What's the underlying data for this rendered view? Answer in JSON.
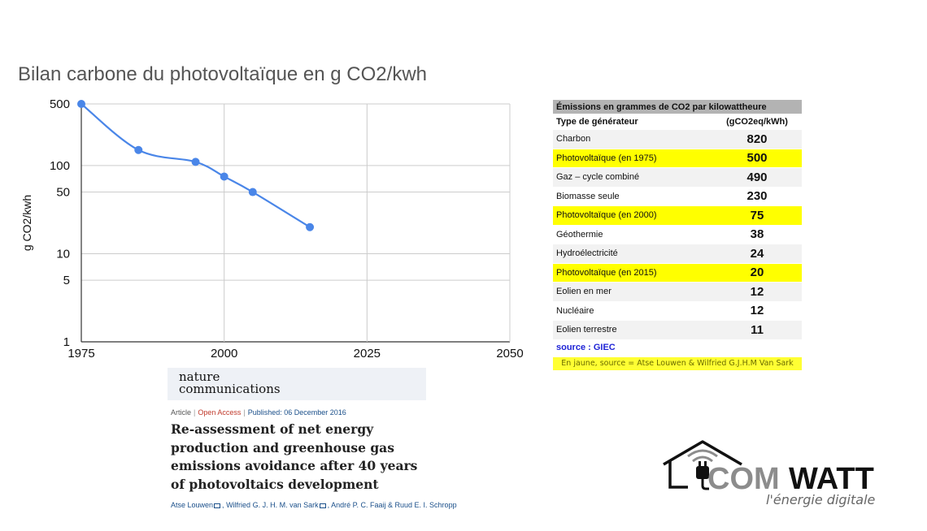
{
  "chart_data": {
    "type": "line",
    "title": "Bilan carbone du photovoltaïque en g CO2/kwh",
    "xlabel": "",
    "ylabel": "g CO2/kwh",
    "y_scale": "log",
    "xlim": [
      1975,
      2050
    ],
    "ylim": [
      1,
      500
    ],
    "x_ticks": [
      "1975",
      "2000",
      "2025",
      "2050"
    ],
    "y_ticks": [
      "1",
      "5",
      "10",
      "50",
      "100",
      "500"
    ],
    "grid": true,
    "legend": "none",
    "series": [
      {
        "color": "#4a86e8",
        "x": [
          1975,
          1985,
          1995,
          2000,
          2005,
          2015
        ],
        "y": [
          500,
          150,
          110,
          75,
          50,
          20
        ]
      }
    ]
  },
  "paper": {
    "journal_line1": "nature",
    "journal_line2": "communications",
    "article": "Article",
    "open_access": "Open Access",
    "published": "Published: 06 December 2016",
    "title": "Re-assessment of net energy production and greenhouse gas emissions avoidance after 40 years of photovoltaics development",
    "author1": "Atse Louwen",
    "author2": "Wilfried G. J. H. M. van Sark",
    "author3": "André P. C. Faaij",
    "amp": "&",
    "author4": "Ruud E. I. Schropp"
  },
  "emissions_table": {
    "title": "Émissions en grammes de CO2 par kilowattheure",
    "col1_header": "Type de générateur",
    "col2_header": "(gCO2eq/kWh)",
    "rows": [
      {
        "name": "Charbon",
        "value": "820",
        "highlight": false
      },
      {
        "name": "Photovoltaïque (en 1975)",
        "value": "500",
        "highlight": true
      },
      {
        "name": "Gaz – cycle combiné",
        "value": "490",
        "highlight": false
      },
      {
        "name": "Biomasse seule",
        "value": "230",
        "highlight": false
      },
      {
        "name": "Photovoltaïque (en 2000)",
        "value": "75",
        "highlight": true
      },
      {
        "name": "Géothermie",
        "value": "38",
        "highlight": false
      },
      {
        "name": "Hydroélectricité",
        "value": "24",
        "highlight": false
      },
      {
        "name": "Photovoltaïque (en 2015)",
        "value": "20",
        "highlight": true
      },
      {
        "name": "Eolien en mer",
        "value": "12",
        "highlight": false
      },
      {
        "name": "Nucléaire",
        "value": "12",
        "highlight": false
      },
      {
        "name": "Eolien terrestre",
        "value": "11",
        "highlight": false
      }
    ],
    "source": "source : GIEC",
    "note": "En jaune, source = Atse Louwen & Wilfried G.J.H.M Van Sark"
  },
  "logo": {
    "brand_left": "COM",
    "brand_right": "WATT",
    "tagline": "l'énergie digitale",
    "colors": {
      "dark": "#111111",
      "grey": "#8c8c8c"
    },
    "icon": "house-plug-icon"
  }
}
